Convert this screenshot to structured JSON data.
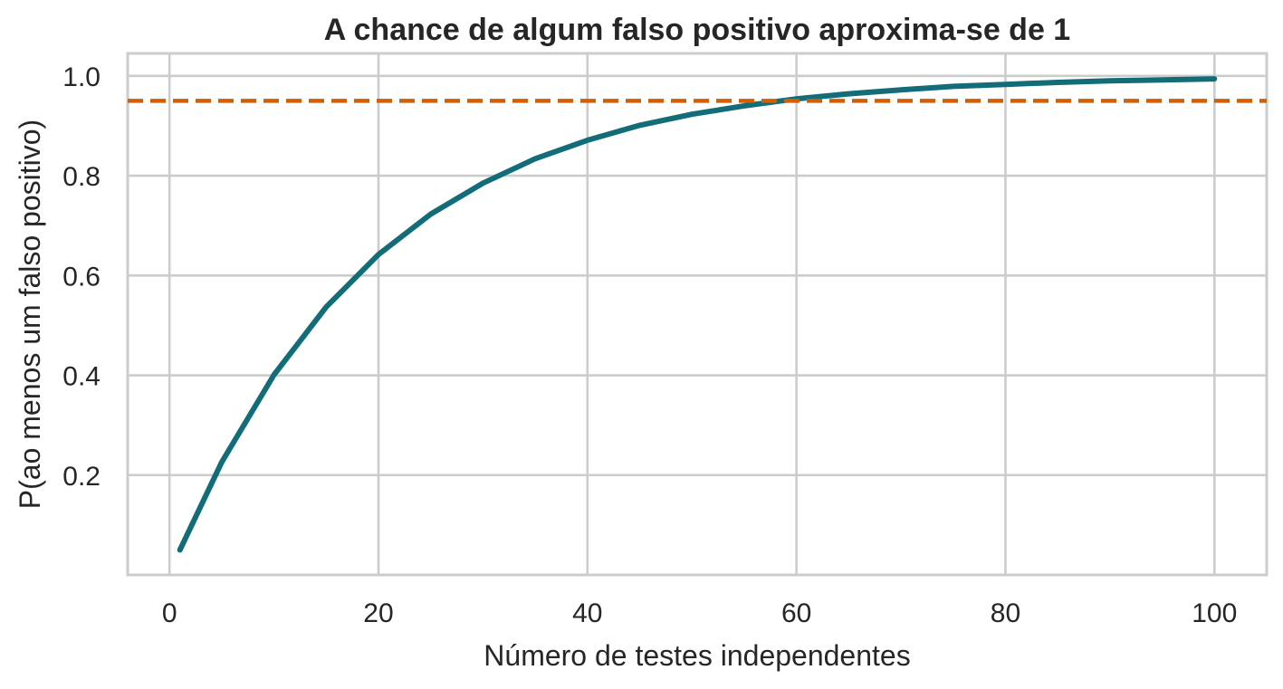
{
  "chart_data": {
    "type": "line",
    "title": "A chance de algum falso positivo aproxima-se de 1",
    "xlabel": "Número de testes independentes",
    "ylabel": "P(ao menos um falso positivo)",
    "xlim": [
      -4,
      105
    ],
    "ylim": [
      0.0,
      1.045
    ],
    "xticks": [
      0,
      20,
      40,
      60,
      80,
      100
    ],
    "xtick_labels": [
      "0",
      "20",
      "40",
      "60",
      "80",
      "100"
    ],
    "yticks": [
      0.2,
      0.4,
      0.6,
      0.8,
      1.0
    ],
    "ytick_labels": [
      "0.2",
      "0.4",
      "0.6",
      "0.8",
      "1.0"
    ],
    "grid": true,
    "series": [
      {
        "color": "#136d79",
        "x": [
          1,
          5,
          10,
          15,
          20,
          25,
          30,
          35,
          40,
          45,
          50,
          55,
          60,
          65,
          70,
          75,
          80,
          85,
          90,
          95,
          100
        ],
        "y": [
          0.05,
          0.226,
          0.401,
          0.537,
          0.642,
          0.723,
          0.785,
          0.834,
          0.871,
          0.901,
          0.923,
          0.94,
          0.954,
          0.964,
          0.972,
          0.979,
          0.983,
          0.987,
          0.99,
          0.992,
          0.994
        ]
      }
    ],
    "reference_line": {
      "orientation": "horizontal",
      "y": 0.95,
      "style": "dashed",
      "color": "#d45e00"
    }
  }
}
